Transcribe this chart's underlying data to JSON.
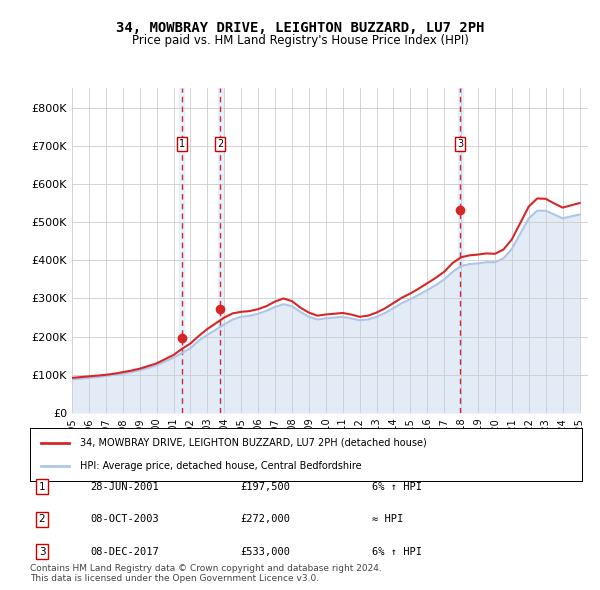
{
  "title": "34, MOWBRAY DRIVE, LEIGHTON BUZZARD, LU7 2PH",
  "subtitle": "Price paid vs. HM Land Registry's House Price Index (HPI)",
  "xlabel": "",
  "ylabel": "",
  "ylim": [
    0,
    850000
  ],
  "yticks": [
    0,
    100000,
    200000,
    300000,
    400000,
    500000,
    600000,
    700000,
    800000
  ],
  "ytick_labels": [
    "£0",
    "£100K",
    "£200K",
    "£300K",
    "£400K",
    "£500K",
    "£600K",
    "£700K",
    "£800K"
  ],
  "hpi_color": "#aec6e8",
  "price_color": "#d62728",
  "bg_color": "#ffffff",
  "plot_bg_color": "#ffffff",
  "grid_color": "#cccccc",
  "sale_marker_color": "#d62728",
  "dashed_line_color": "#d62728",
  "sale_shading_color": "#ddeeff",
  "legend_label_price": "34, MOWBRAY DRIVE, LEIGHTON BUZZARD, LU7 2PH (detached house)",
  "legend_label_hpi": "HPI: Average price, detached house, Central Bedfordshire",
  "footer": "Contains HM Land Registry data © Crown copyright and database right 2024.\nThis data is licensed under the Open Government Licence v3.0.",
  "sales": [
    {
      "num": 1,
      "date": "28-JUN-2001",
      "price": 197500,
      "year": 2001.49,
      "note": "6% ↑ HPI"
    },
    {
      "num": 2,
      "date": "08-OCT-2003",
      "price": 272000,
      "year": 2003.77,
      "note": "≈ HPI"
    },
    {
      "num": 3,
      "date": "08-DEC-2017",
      "price": 533000,
      "year": 2017.94,
      "note": "6% ↑ HPI"
    }
  ],
  "hpi_years": [
    1995,
    1995.5,
    1996,
    1996.5,
    1997,
    1997.5,
    1998,
    1998.5,
    1999,
    1999.5,
    2000,
    2000.5,
    2001,
    2001.5,
    2002,
    2002.5,
    2003,
    2003.5,
    2004,
    2004.5,
    2005,
    2005.5,
    2006,
    2006.5,
    2007,
    2007.5,
    2008,
    2008.5,
    2009,
    2009.5,
    2010,
    2010.5,
    2011,
    2011.5,
    2012,
    2012.5,
    2013,
    2013.5,
    2014,
    2014.5,
    2015,
    2015.5,
    2016,
    2016.5,
    2017,
    2017.5,
    2018,
    2018.5,
    2019,
    2019.5,
    2020,
    2020.5,
    2021,
    2021.5,
    2022,
    2022.5,
    2023,
    2023.5,
    2024,
    2024.5,
    2025
  ],
  "hpi_values": [
    88000,
    90000,
    92000,
    94000,
    97000,
    100000,
    103000,
    107000,
    112000,
    118000,
    125000,
    135000,
    145000,
    157000,
    170000,
    190000,
    205000,
    218000,
    232000,
    245000,
    252000,
    255000,
    260000,
    268000,
    278000,
    285000,
    280000,
    265000,
    252000,
    245000,
    248000,
    250000,
    252000,
    248000,
    243000,
    245000,
    252000,
    262000,
    275000,
    288000,
    298000,
    310000,
    322000,
    335000,
    350000,
    370000,
    385000,
    390000,
    392000,
    395000,
    395000,
    405000,
    430000,
    470000,
    510000,
    530000,
    530000,
    520000,
    510000,
    515000,
    520000
  ],
  "price_years": [
    1995,
    1995.5,
    1996,
    1996.5,
    1997,
    1997.5,
    1998,
    1998.5,
    1999,
    1999.5,
    2000,
    2000.5,
    2001,
    2001.5,
    2002,
    2002.5,
    2003,
    2003.5,
    2004,
    2004.5,
    2005,
    2005.5,
    2006,
    2006.5,
    2007,
    2007.5,
    2008,
    2008.5,
    2009,
    2009.5,
    2010,
    2010.5,
    2011,
    2011.5,
    2012,
    2012.5,
    2013,
    2013.5,
    2014,
    2014.5,
    2015,
    2015.5,
    2016,
    2016.5,
    2017,
    2017.5,
    2018,
    2018.5,
    2019,
    2019.5,
    2020,
    2020.5,
    2021,
    2021.5,
    2022,
    2022.5,
    2023,
    2023.5,
    2024,
    2024.5,
    2025
  ],
  "price_values": [
    92000,
    94000,
    96000,
    98000,
    100000,
    103000,
    107000,
    111000,
    116000,
    123000,
    130000,
    141000,
    152000,
    168000,
    182000,
    202000,
    220000,
    235000,
    250000,
    261000,
    265000,
    267000,
    272000,
    280000,
    292000,
    300000,
    293000,
    276000,
    263000,
    255000,
    258000,
    260000,
    262000,
    258000,
    252000,
    255000,
    263000,
    274000,
    288000,
    302000,
    313000,
    326000,
    340000,
    354000,
    370000,
    393000,
    408000,
    413000,
    415000,
    418000,
    417000,
    428000,
    455000,
    498000,
    541000,
    562000,
    561000,
    549000,
    538000,
    544000,
    550000
  ],
  "xtick_years": [
    1995,
    1996,
    1997,
    1998,
    1999,
    2000,
    2001,
    2002,
    2003,
    2004,
    2005,
    2006,
    2007,
    2008,
    2009,
    2010,
    2011,
    2012,
    2013,
    2014,
    2015,
    2016,
    2017,
    2018,
    2019,
    2020,
    2021,
    2022,
    2023,
    2024,
    2025
  ],
  "xlim": [
    1995,
    2025.5
  ]
}
